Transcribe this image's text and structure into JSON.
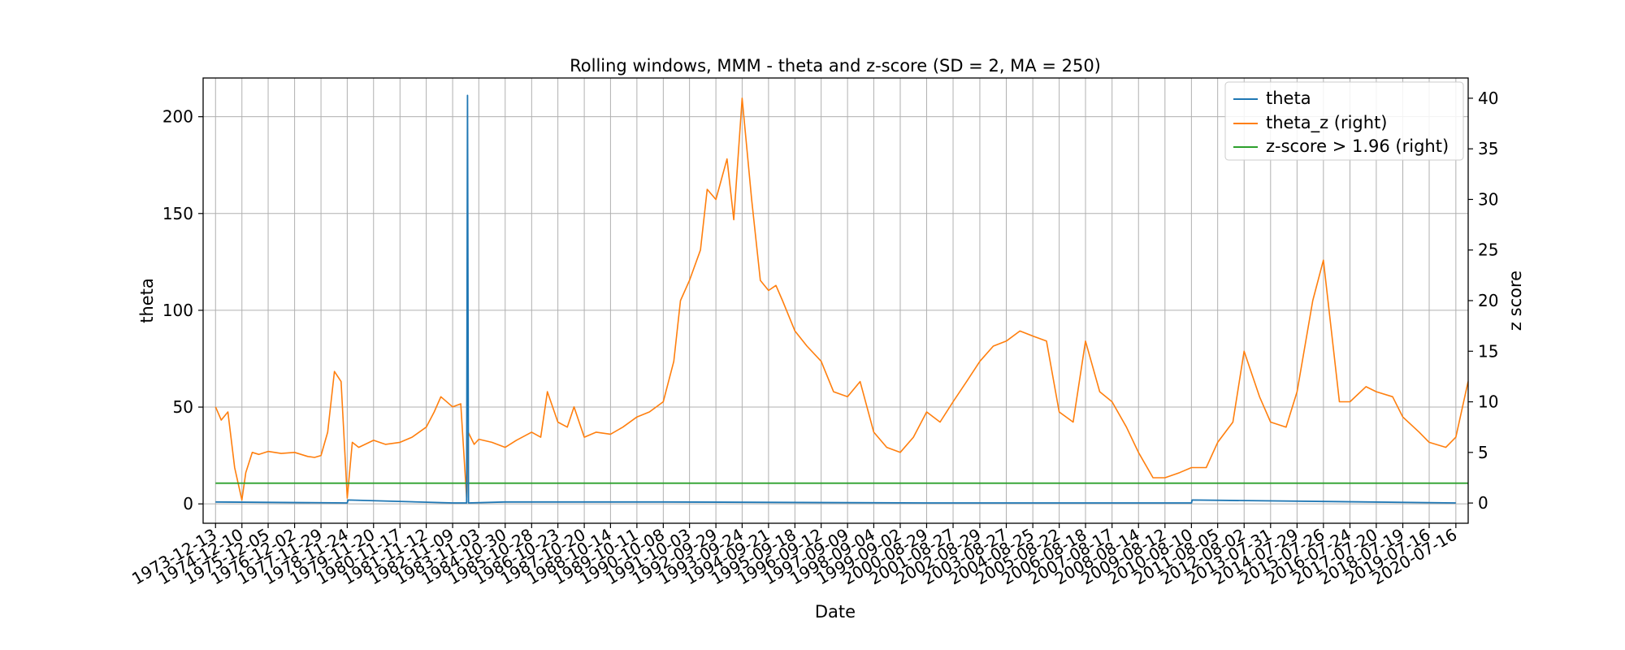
{
  "chart_data": {
    "type": "line",
    "title": "Rolling windows, MMM - theta and z-score (SD = 2, MA = 250)",
    "xlabel": "Date",
    "ylabel": "theta",
    "y2label": "z score",
    "ylim": [
      -10,
      220
    ],
    "y2lim": [
      -2,
      42
    ],
    "yticks": [
      0,
      50,
      100,
      150,
      200
    ],
    "y2ticks": [
      0,
      5,
      10,
      15,
      20,
      25,
      30,
      35,
      40
    ],
    "x_tick_labels": [
      "1973-12-13",
      "1974-12-10",
      "1975-12-05",
      "1976-12-02",
      "1977-11-29",
      "1978-11-24",
      "1979-11-20",
      "1980-11-17",
      "1981-11-12",
      "1982-11-09",
      "1983-11-03",
      "1984-10-30",
      "1985-10-28",
      "1986-10-23",
      "1987-10-20",
      "1988-10-14",
      "1989-10-11",
      "1990-10-08",
      "1991-10-03",
      "1992-09-29",
      "1993-09-24",
      "1994-09-21",
      "1995-09-18",
      "1996-09-12",
      "1997-09-09",
      "1998-09-04",
      "1999-09-02",
      "2000-08-29",
      "2001-08-27",
      "2002-08-29",
      "2003-08-27",
      "2004-08-25",
      "2005-08-22",
      "2006-08-18",
      "2007-08-17",
      "2008-08-14",
      "2009-08-12",
      "2010-08-10",
      "2011-08-05",
      "2012-08-02",
      "2013-07-31",
      "2014-07-29",
      "2015-07-26",
      "2016-07-24",
      "2017-07-20",
      "2018-07-19",
      "2019-07-16",
      "2020-07-16"
    ],
    "grid": true,
    "legend_position": "top-right",
    "series": [
      {
        "name": "theta",
        "axis": "left",
        "color": "#1f77b4",
        "x": [
          "1973-12-13",
          "1978-11-24",
          "1978-12-05",
          "1982-11-09",
          "1983-05-20",
          "1983-06-01",
          "1983-06-15",
          "1984-10-30",
          "1990-10-08",
          "2000-08-29",
          "2010-08-10",
          "2010-08-20",
          "2020-07-16"
        ],
        "values": [
          1,
          0.5,
          2,
          0.5,
          0.5,
          211,
          0.5,
          1,
          1,
          0.5,
          0.5,
          2,
          0.5
        ]
      },
      {
        "name": "theta_z (right)",
        "axis": "right",
        "color": "#ff7f0e",
        "x": [
          "1973-12-13",
          "1974-03-01",
          "1974-06-01",
          "1974-09-01",
          "1974-12-10",
          "1975-02-01",
          "1975-05-01",
          "1975-08-01",
          "1975-12-05",
          "1976-06-01",
          "1976-12-02",
          "1977-06-01",
          "1977-09-01",
          "1977-11-29",
          "1978-03-01",
          "1978-06-01",
          "1978-09-01",
          "1978-11-24",
          "1979-02-01",
          "1979-05-01",
          "1979-11-20",
          "1980-05-01",
          "1980-11-17",
          "1981-05-01",
          "1981-11-12",
          "1982-03-01",
          "1982-06-01",
          "1982-11-09",
          "1983-03-01",
          "1983-05-20",
          "1983-06-10",
          "1983-09-01",
          "1983-11-03",
          "1984-05-01",
          "1984-10-30",
          "1985-04-01",
          "1985-10-28",
          "1986-03-01",
          "1986-06-01",
          "1986-10-23",
          "1987-03-01",
          "1987-06-01",
          "1987-10-20",
          "1988-04-01",
          "1988-10-14",
          "1989-04-01",
          "1989-10-11",
          "1990-04-01",
          "1990-10-08",
          "1991-03-01",
          "1991-06-01",
          "1991-10-03",
          "1992-03-01",
          "1992-06-01",
          "1992-09-29",
          "1993-03-01",
          "1993-06-01",
          "1993-09-24",
          "1994-02-01",
          "1994-06-01",
          "1994-09-21",
          "1995-01-01",
          "1995-04-01",
          "1995-09-18",
          "1996-03-01",
          "1996-09-12",
          "1997-03-01",
          "1997-09-09",
          "1998-03-01",
          "1998-09-04",
          "1999-03-01",
          "1999-09-02",
          "2000-03-01",
          "2000-08-29",
          "2001-03-01",
          "2001-08-27",
          "2002-03-01",
          "2002-08-29",
          "2003-03-01",
          "2003-08-27",
          "2004-03-01",
          "2004-08-25",
          "2005-03-01",
          "2005-08-22",
          "2006-03-01",
          "2006-08-18",
          "2007-03-01",
          "2007-08-17",
          "2008-03-01",
          "2008-08-14",
          "2009-03-01",
          "2009-08-12",
          "2010-03-01",
          "2010-08-10",
          "2011-03-01",
          "2011-08-05",
          "2012-03-01",
          "2012-08-02",
          "2013-03-01",
          "2013-07-31",
          "2014-03-01",
          "2014-07-29",
          "2015-03-01",
          "2015-07-26",
          "2016-03-01",
          "2016-07-24",
          "2017-03-01",
          "2017-07-20",
          "2018-03-01",
          "2018-07-19",
          "2019-03-01",
          "2019-07-16",
          "2020-03-01",
          "2020-07-16",
          "2020-12-31"
        ],
        "values": [
          9.5,
          8.2,
          9.0,
          3.5,
          0.3,
          3.0,
          5.0,
          4.8,
          5.1,
          4.9,
          5.0,
          4.6,
          4.5,
          4.7,
          7.0,
          13.0,
          12.0,
          0.5,
          6.0,
          5.5,
          6.2,
          5.8,
          6.0,
          6.5,
          7.5,
          9.0,
          10.5,
          9.5,
          9.8,
          0.5,
          7.0,
          5.8,
          6.3,
          6.0,
          5.5,
          6.2,
          7.0,
          6.5,
          11.0,
          8.0,
          7.5,
          9.5,
          6.5,
          7.0,
          6.8,
          7.5,
          8.5,
          9.0,
          10.0,
          14.0,
          20.0,
          22.0,
          25.0,
          31.0,
          30.0,
          34.0,
          28.0,
          40.0,
          30.0,
          22.0,
          21.0,
          21.5,
          20.0,
          17.0,
          15.5,
          14.0,
          11.0,
          10.5,
          12.0,
          7.0,
          5.5,
          5.0,
          6.5,
          9.0,
          8.0,
          10.0,
          12.0,
          14.0,
          15.5,
          16.0,
          17.0,
          16.5,
          16.0,
          9.0,
          8.0,
          16.0,
          11.0,
          10.0,
          7.5,
          5.0,
          2.5,
          2.5,
          3.0,
          3.5,
          3.5,
          6.0,
          8.0,
          15.0,
          10.5,
          8.0,
          7.5,
          11.0,
          20.0,
          24.0,
          10.0,
          10.0,
          11.5,
          11.0,
          10.5,
          8.5,
          7.0,
          6.0,
          5.5,
          6.5,
          12.0
        ]
      },
      {
        "name": "z-score > 1.96 (right)",
        "axis": "right",
        "color": "#2ca02c",
        "x": [
          "1973-12-13",
          "2020-12-31"
        ],
        "values": [
          1.96,
          1.96
        ]
      }
    ]
  }
}
